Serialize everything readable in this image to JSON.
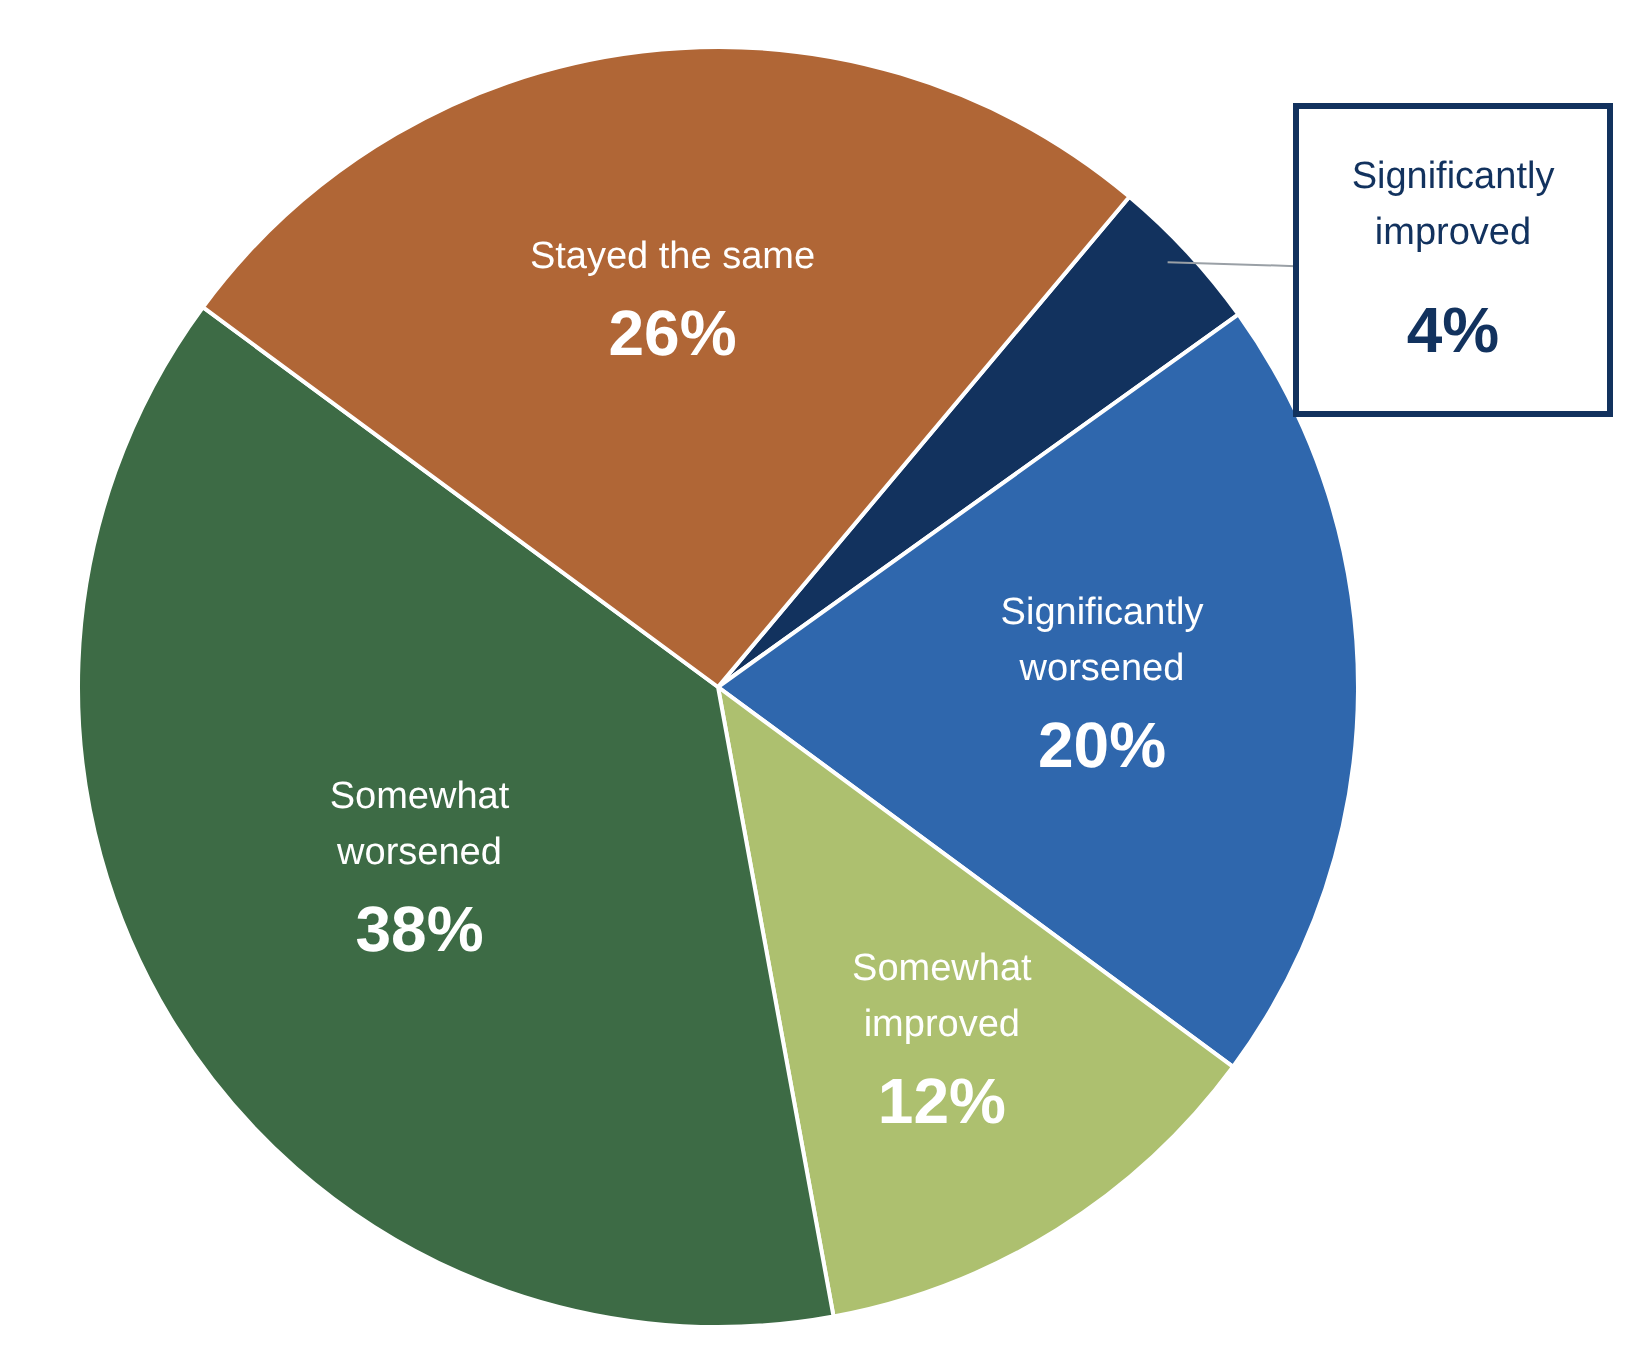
{
  "chart_data": {
    "type": "pie",
    "categories": [
      "Significantly improved",
      "Significantly worsened",
      "Somewhat improved",
      "Somewhat worsened",
      "Stayed the same"
    ],
    "values": [
      4,
      20,
      12,
      38,
      26
    ],
    "colors": [
      "#12325e",
      "#2f67ad",
      "#adc06f",
      "#3d6b45",
      "#b06636"
    ],
    "value_labels": [
      "4%",
      "20%",
      "12%",
      "38%",
      "26%"
    ],
    "legend": false
  }
}
